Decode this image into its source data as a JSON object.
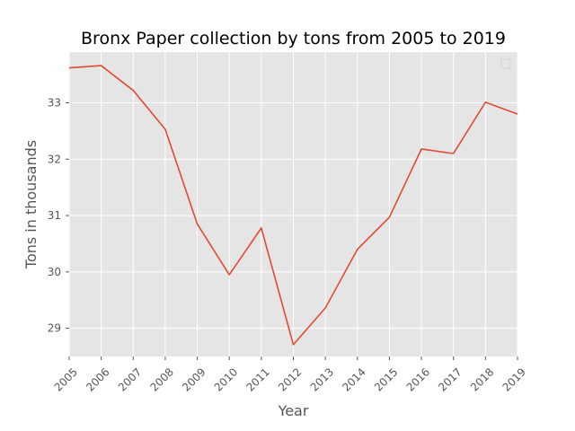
{
  "chart_data": {
    "type": "line",
    "title": "Bronx Paper collection by tons from 2005 to 2019",
    "xlabel": "Year",
    "ylabel": "Tons in thousands",
    "x": [
      2005,
      2006,
      2007,
      2008,
      2009,
      2010,
      2011,
      2012,
      2013,
      2014,
      2015,
      2016,
      2017,
      2018,
      2019
    ],
    "x_tick_labels": [
      "2005",
      "2006",
      "2007",
      "2008",
      "2009",
      "2010",
      "2011",
      "2012",
      "2013",
      "2014",
      "2015",
      "2016",
      "2017",
      "2018",
      "2019"
    ],
    "series": [
      {
        "values": [
          33.62,
          33.66,
          33.22,
          32.53,
          30.85,
          29.95,
          30.78,
          28.71,
          29.36,
          30.4,
          30.97,
          32.18,
          32.1,
          33.01,
          32.8
        ]
      }
    ],
    "yticks": [
      29,
      30,
      31,
      32,
      33
    ],
    "y_tick_labels": [
      "29",
      "30",
      "31",
      "32",
      "33"
    ],
    "xlim": [
      2005,
      2019
    ],
    "ylim": [
      28.5,
      33.9
    ],
    "grid": true,
    "legend": "top-right (empty)",
    "colors": {
      "plot_background": "#e5e5e5",
      "grid": "#ffffff",
      "line": "#e24a33",
      "text": "#555555",
      "title": "#000000"
    }
  }
}
